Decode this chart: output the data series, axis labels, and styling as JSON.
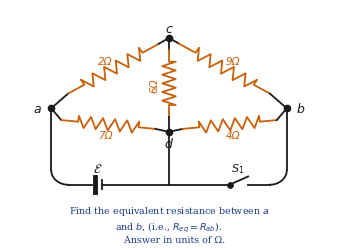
{
  "bg_color": "#ffffff",
  "line_color": "#1a1a1a",
  "orange_color": "#c8600a",
  "caption_color": "#1a3a8a",
  "nodes": {
    "a": "a",
    "b": "b",
    "c": "c",
    "d": "d"
  },
  "resistor_labels": {
    "top_left": "2Ω",
    "top_right": "9Ω",
    "mid_left": "7Ω",
    "mid_center": "6Ω",
    "mid_right": "4Ω"
  },
  "battery_label": "$\\mathcal{E}$",
  "switch_label": "$S_1$",
  "caption_line1": "Find the equivalent resistance between $a$",
  "caption_line2": "and $b$, (i.e., $R_{eq} = R_{ab}$).",
  "caption_line3": "    Answer in units of Ω."
}
